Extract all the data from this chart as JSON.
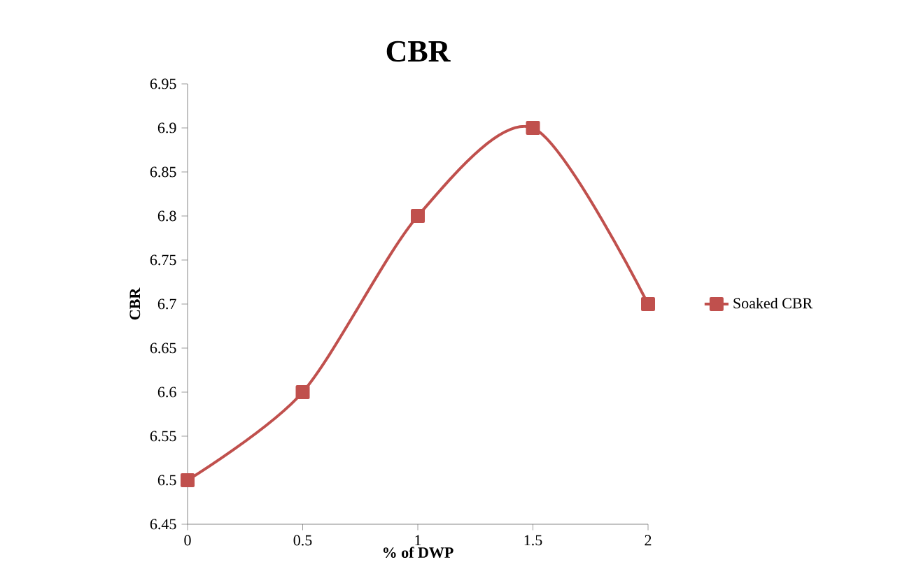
{
  "chart_data": {
    "type": "line",
    "title": "CBR",
    "xlabel": "% of DWP",
    "ylabel": "CBR",
    "x": [
      0,
      0.5,
      1,
      1.5,
      2
    ],
    "series": [
      {
        "name": "Soaked CBR",
        "color": "#c0504d",
        "values": [
          6.5,
          6.6,
          6.8,
          6.9,
          6.7
        ]
      }
    ],
    "xlim": [
      0,
      2
    ],
    "ylim": [
      6.45,
      6.95
    ],
    "xticks": [
      0,
      0.5,
      1,
      1.5,
      2
    ],
    "yticks": [
      6.45,
      6.5,
      6.55,
      6.6,
      6.65,
      6.7,
      6.75,
      6.8,
      6.85,
      6.9,
      6.95
    ],
    "legend": "right",
    "marker": "square",
    "line_style": "solid"
  }
}
